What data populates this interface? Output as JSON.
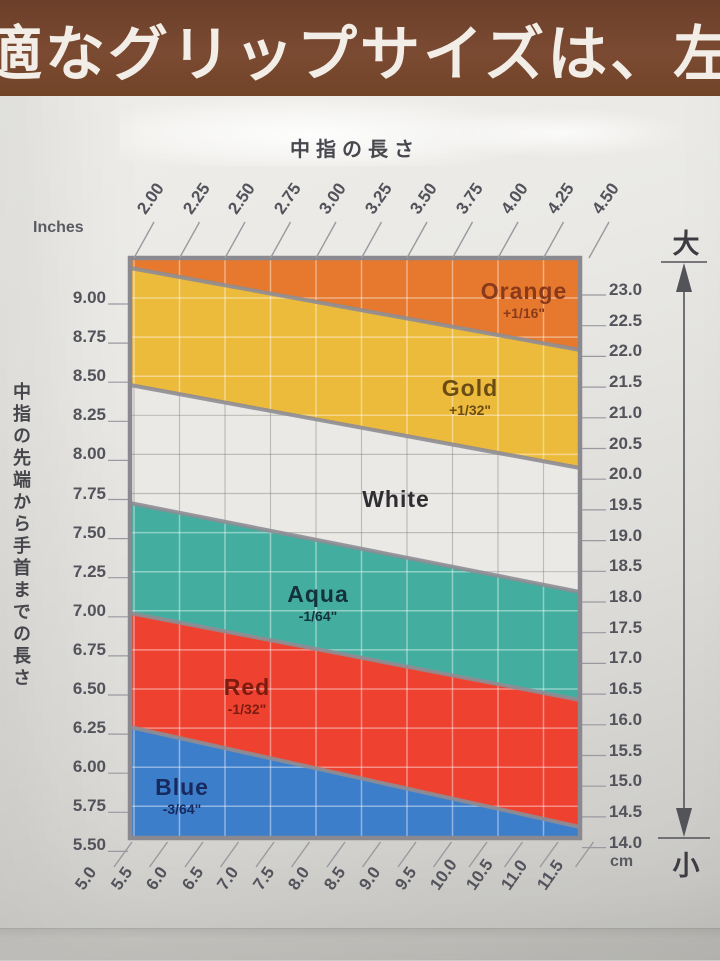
{
  "banner": {
    "text": "適なグリップサイズは、左"
  },
  "chart_data": {
    "type": "area",
    "title_top": "中指の長さ",
    "axes": {
      "top": {
        "label": "中指の長さ",
        "unit": "inches",
        "ticks": [
          "2.00",
          "2.25",
          "2.50",
          "2.75",
          "3.00",
          "3.25",
          "3.50",
          "3.75",
          "4.00",
          "4.25",
          "4.50"
        ]
      },
      "bottom": {
        "unit": "cm",
        "unit_label": "cm",
        "ticks": [
          "5.0",
          "5.5",
          "6.0",
          "6.5",
          "7.0",
          "7.5",
          "8.0",
          "8.5",
          "9.0",
          "9.5",
          "10.0",
          "10.5",
          "11.0",
          "11.5"
        ]
      },
      "left": {
        "label": "Inches",
        "title_vertical": "中指の先端から手首までの長さ",
        "unit": "inches",
        "ticks": [
          "9.00",
          "8.75",
          "8.50",
          "8.25",
          "8.00",
          "7.75",
          "7.50",
          "7.25",
          "7.00",
          "6.75",
          "6.50",
          "6.25",
          "6.00",
          "5.75",
          "5.50"
        ]
      },
      "right": {
        "unit": "cm",
        "unit_label": "cm",
        "arrow_top_label": "大",
        "arrow_bottom_label": "小",
        "ticks": [
          "23.0",
          "22.5",
          "22.0",
          "21.5",
          "21.0",
          "20.5",
          "20.0",
          "19.5",
          "19.0",
          "18.5",
          "18.0",
          "17.5",
          "17.0",
          "16.5",
          "16.0",
          "15.5",
          "15.0",
          "14.5",
          "14.0"
        ]
      }
    },
    "y_range_inches": [
      5.55,
      9.2
    ],
    "x_range_inches": [
      2.0,
      4.5
    ],
    "grid": true,
    "bands": [
      {
        "name": "Orange",
        "size": "+1/16\"",
        "color": "#e6792e",
        "label_color": "#8a3a1b",
        "bottom_edge_inches": {
          "left": 9.19,
          "right": 8.67
        }
      },
      {
        "name": "Gold",
        "size": "+1/32\"",
        "color": "#edbb3c",
        "label_color": "#6b4c12",
        "bottom_edge_inches": {
          "left": 8.44,
          "right": 7.91
        }
      },
      {
        "name": "White",
        "size": "",
        "color": "#eae9e5",
        "label_color": "#2e2e33",
        "bottom_edge_inches": {
          "left": 7.69,
          "right": 7.12
        }
      },
      {
        "name": "Aqua",
        "size": "-1/64\"",
        "color": "#43ae9f",
        "label_color": "#14323d",
        "bottom_edge_inches": {
          "left": 6.98,
          "right": 6.43
        }
      },
      {
        "name": "Red",
        "size": "-1/32\"",
        "color": "#ee4130",
        "label_color": "#7c1b10",
        "bottom_edge_inches": {
          "left": 6.25,
          "right": 5.61
        }
      },
      {
        "name": "Blue",
        "size": "-3/64\"",
        "color": "#3d7ecb",
        "label_color": "#17295e",
        "bottom_edge_inches": {
          "left": 5.55,
          "right": 5.55
        }
      }
    ]
  }
}
